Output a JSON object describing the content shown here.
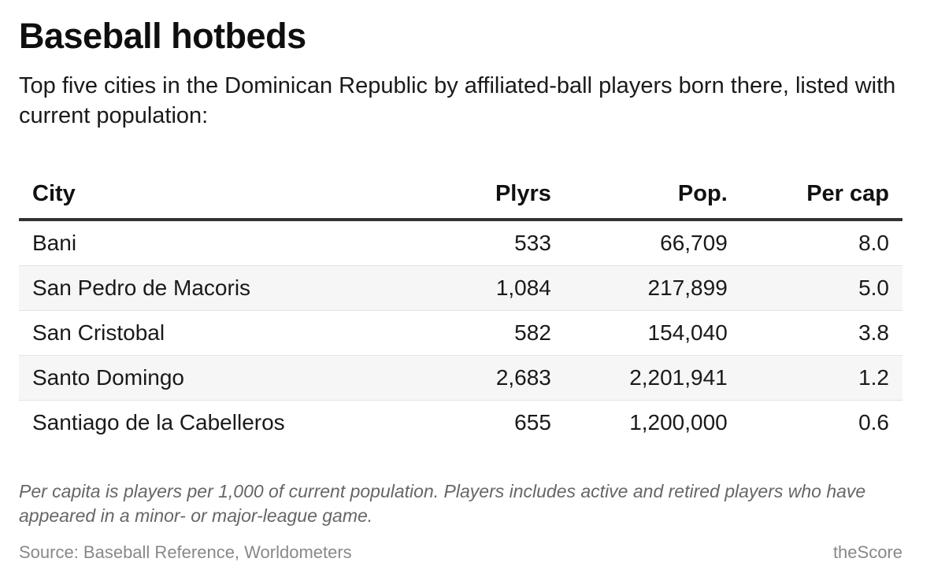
{
  "title": "Baseball hotbeds",
  "subtitle": "Top five cities in the Dominican Republic by affiliated-ball players born there, listed with current population:",
  "chart_data": {
    "type": "table",
    "columns": [
      "City",
      "Plyrs",
      "Pop.",
      "Per cap"
    ],
    "rows": [
      [
        "Bani",
        "533",
        "66,709",
        "8.0"
      ],
      [
        "San Pedro de Macoris",
        "1,084",
        "217,899",
        "5.0"
      ],
      [
        "San Cristobal",
        "582",
        "154,040",
        "3.8"
      ],
      [
        "Santo Domingo",
        "2,683",
        "2,201,941",
        "1.2"
      ],
      [
        "Santiago de la Cabelleros",
        "655",
        "1,200,000",
        "0.6"
      ]
    ]
  },
  "note": "Per capita is players per 1,000 of current population. Players includes active and retired players who have appeared in a minor- or major-league game.",
  "source": "Source: Baseball Reference, Worldometers",
  "credit": "theScore",
  "colors": {
    "text": "#111111",
    "muted": "#666666",
    "stripe": "#f6f6f6",
    "rule": "#333333"
  }
}
